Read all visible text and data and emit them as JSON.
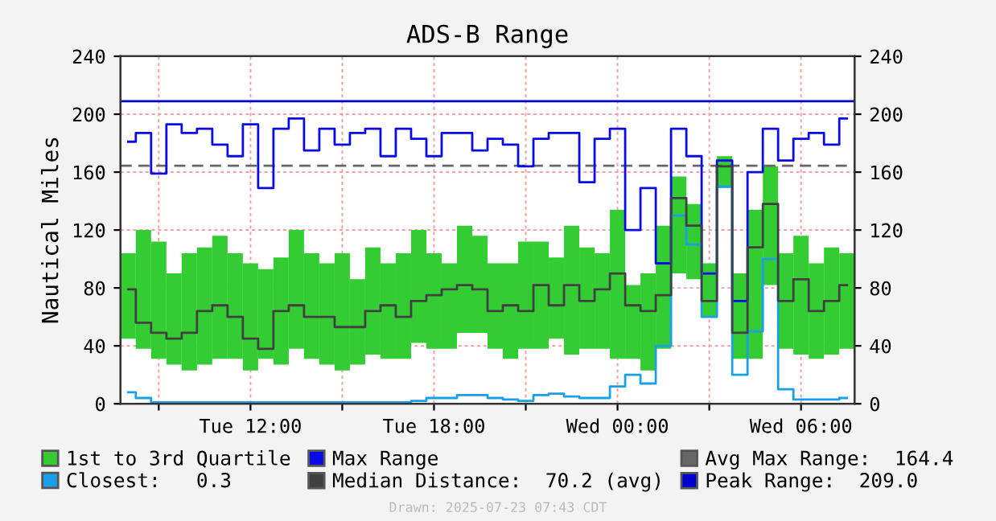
{
  "chart_data": {
    "type": "step",
    "title": "ADS-B Range",
    "ylabel": "Nautical Miles",
    "x": [
      "2025-07-22T08:00",
      "2025-07-22T08:30",
      "2025-07-22T09:00",
      "2025-07-22T09:30",
      "2025-07-22T10:00",
      "2025-07-22T10:30",
      "2025-07-22T11:00",
      "2025-07-22T11:30",
      "2025-07-22T12:00",
      "2025-07-22T12:30",
      "2025-07-22T13:00",
      "2025-07-22T13:30",
      "2025-07-22T14:00",
      "2025-07-22T14:30",
      "2025-07-22T15:00",
      "2025-07-22T15:30",
      "2025-07-22T16:00",
      "2025-07-22T16:30",
      "2025-07-22T17:00",
      "2025-07-22T17:30",
      "2025-07-22T18:00",
      "2025-07-22T18:30",
      "2025-07-22T19:00",
      "2025-07-22T19:30",
      "2025-07-22T20:00",
      "2025-07-22T20:30",
      "2025-07-22T21:00",
      "2025-07-22T21:30",
      "2025-07-22T22:00",
      "2025-07-22T22:30",
      "2025-07-22T23:00",
      "2025-07-22T23:30",
      "2025-07-23T00:00",
      "2025-07-23T00:30",
      "2025-07-23T01:00",
      "2025-07-23T01:30",
      "2025-07-23T02:00",
      "2025-07-23T02:30",
      "2025-07-23T03:00",
      "2025-07-23T03:30",
      "2025-07-23T04:00",
      "2025-07-23T04:30",
      "2025-07-23T05:00",
      "2025-07-23T05:30",
      "2025-07-23T06:00",
      "2025-07-23T06:30",
      "2025-07-23T07:00",
      "2025-07-23T07:30"
    ],
    "series": [
      {
        "name": "1st to 3rd Quartile",
        "type": "bar",
        "color": "#33cc33",
        "values": [
          59,
          82,
          81,
          63,
          81,
          81,
          85,
          73,
          74,
          62,
          74,
          82,
          73,
          70,
          81,
          59,
          74,
          66,
          73,
          78,
          66,
          59,
          74,
          67,
          59,
          66,
          74,
          74,
          56,
          89,
          70,
          66,
          103,
          51,
          67,
          85,
          67,
          52,
          37,
          22,
          59,
          103,
          82,
          66,
          82,
          66,
          74,
          66
        ],
        "base": [
          45,
          38,
          31,
          27,
          23,
          27,
          31,
          31,
          23,
          31,
          27,
          38,
          31,
          27,
          23,
          27,
          34,
          31,
          31,
          42,
          38,
          38,
          49,
          49,
          38,
          31,
          38,
          38,
          45,
          34,
          38,
          38,
          31,
          31,
          23,
          38,
          90,
          86,
          60,
          149,
          31,
          31,
          82,
          38,
          34,
          31,
          34,
          38
        ]
      },
      {
        "name": "Max Range",
        "color": "#0a0ae6",
        "values": [
          181,
          187,
          159,
          193,
          187,
          190,
          179,
          171,
          193,
          149,
          190,
          197,
          175,
          190,
          179,
          187,
          190,
          171,
          190,
          183,
          171,
          187,
          187,
          175,
          183,
          179,
          164,
          183,
          187,
          187,
          153,
          183,
          190,
          120,
          149,
          97,
          190,
          171,
          90,
          168,
          71,
          160,
          190,
          168,
          183,
          187,
          179,
          197
        ]
      },
      {
        "name": "Closest:   0.3",
        "color": "#1a9fe8",
        "values": [
          8,
          4,
          1,
          1,
          1,
          1,
          1,
          1,
          1,
          1,
          1,
          1,
          1,
          1,
          1,
          1,
          1,
          1,
          1,
          2,
          4,
          4,
          6,
          6,
          4,
          3,
          2,
          6,
          7,
          5,
          4,
          4,
          12,
          20,
          14,
          40,
          130,
          110,
          60,
          150,
          20,
          50,
          100,
          10,
          3,
          3,
          3,
          4
        ]
      },
      {
        "name": "Median Distance:  70.2 (avg)",
        "color": "#404040",
        "values": [
          79,
          56,
          49,
          45,
          49,
          64,
          68,
          60,
          45,
          38,
          64,
          68,
          60,
          60,
          53,
          53,
          64,
          68,
          60,
          71,
          75,
          79,
          82,
          79,
          64,
          68,
          64,
          82,
          68,
          82,
          71,
          79,
          90,
          68,
          64,
          75,
          142,
          123,
          71,
          164,
          49,
          108,
          138,
          71,
          86,
          64,
          71,
          82
        ]
      }
    ],
    "ref_lines": [
      {
        "axis": "y",
        "value": 164.4,
        "label": "Avg Max Range:  164.4",
        "color": "#666666",
        "line_style": "dashed"
      },
      {
        "axis": "y",
        "value": 209.0,
        "label": "Peak Range:  209.0",
        "color": "#0000cc",
        "line_style": "solid"
      }
    ],
    "xlim": [
      "2025-07-22T07:45",
      "2025-07-23T07:45"
    ],
    "xticks": [
      {
        "value": "2025-07-22T09:00",
        "label": null
      },
      {
        "value": "2025-07-22T12:00",
        "label": "Tue 12:00"
      },
      {
        "value": "2025-07-22T15:00",
        "label": null
      },
      {
        "value": "2025-07-22T18:00",
        "label": "Tue 18:00"
      },
      {
        "value": "2025-07-22T21:00",
        "label": null
      },
      {
        "value": "2025-07-23T00:00",
        "label": "Wed 00:00"
      },
      {
        "value": "2025-07-23T03:00",
        "label": null
      },
      {
        "value": "2025-07-23T06:00",
        "label": "Wed 06:00"
      }
    ],
    "ylim": [
      0,
      240
    ],
    "yticks": [
      0,
      40,
      80,
      120,
      160,
      200,
      240
    ],
    "y2lim": [
      0,
      240
    ],
    "y2ticks": [
      0,
      40,
      80,
      120,
      160,
      200,
      240
    ],
    "grid": true,
    "legend": "bottom",
    "line_style": "solid",
    "marker": "none",
    "annotations": [
      "Drawn: 2025-07-23 07:43 CDT"
    ]
  }
}
